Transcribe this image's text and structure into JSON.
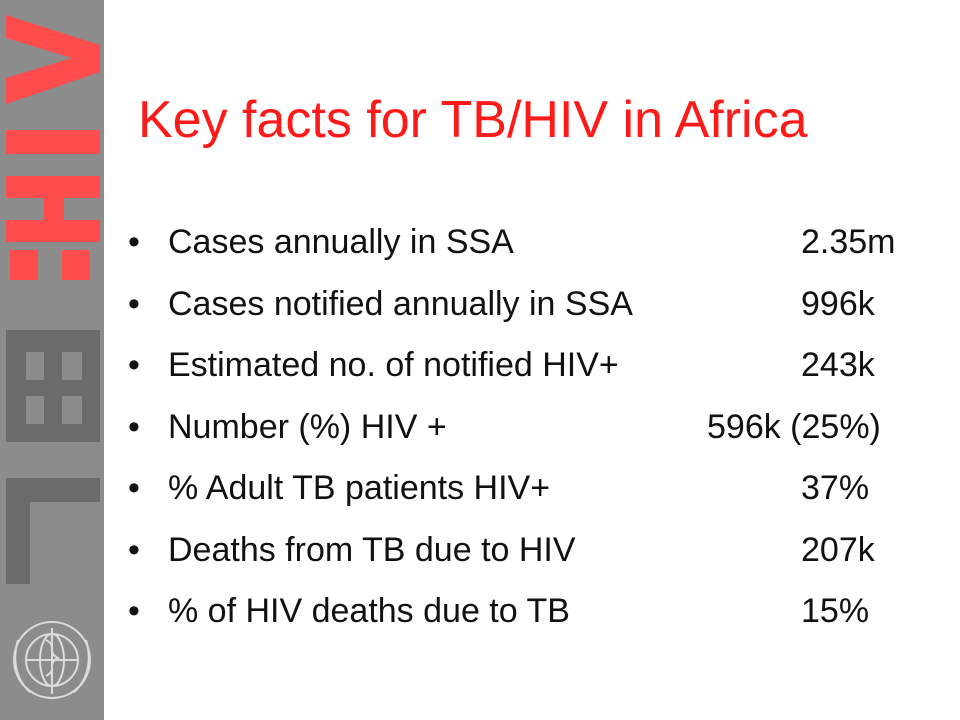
{
  "slide": {
    "title": "Key facts for TB/HIV in Africa",
    "side_band_text": "TB:HIV",
    "logo_icon": "who-emblem-icon",
    "colors": {
      "title": "#ff1a1a",
      "band": "#8c8c8c",
      "band_letters_tb": "#6b6b6b",
      "band_letters_hiv": "#ff4d4d",
      "text": "#111111"
    }
  },
  "facts": [
    {
      "bullet": "•",
      "label": "Cases annually in SSA",
      "value": "2.35m"
    },
    {
      "bullet": "•",
      "label": "Cases notified annually in SSA",
      "value": "996k"
    },
    {
      "bullet": "•",
      "label": "Estimated no. of notified HIV+",
      "value": "243k"
    },
    {
      "bullet": "•",
      "label": "Number (%) HIV +",
      "value": "596k (25%)"
    },
    {
      "bullet": "•",
      "label": "% Adult TB patients HIV+",
      "value": "37%"
    },
    {
      "bullet": "•",
      "label": "Deaths from TB due to HIV",
      "value": "207k"
    },
    {
      "bullet": "•",
      "label": "% of HIV deaths due to TB",
      "value": "15%"
    }
  ]
}
